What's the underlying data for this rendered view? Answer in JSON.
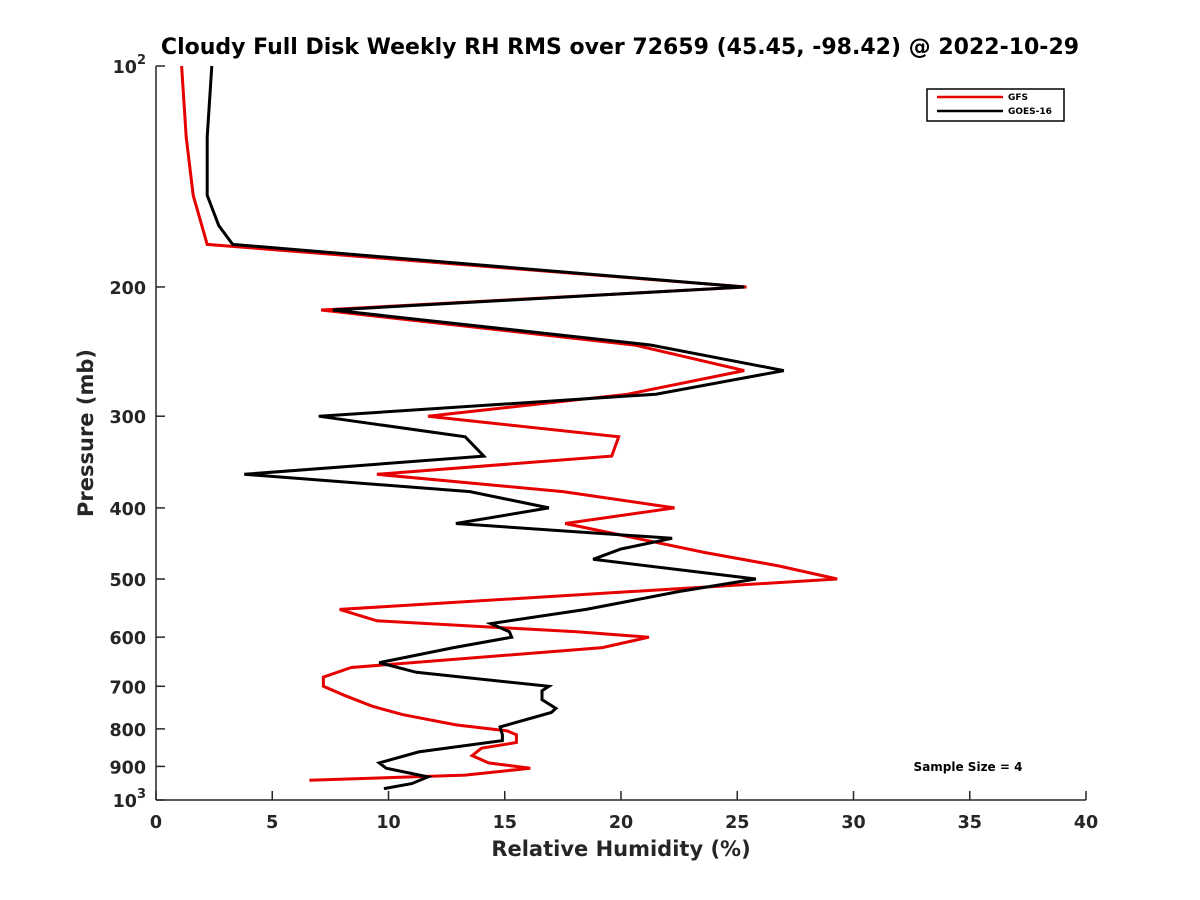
{
  "chart_data": {
    "type": "line",
    "title": "Cloudy Full Disk Weekly RH RMS over 72659 (45.45, -98.42) @ 2022-10-29",
    "xlabel": "Relative Humidity (%)",
    "ylabel": "Pressure (mb)",
    "xlim": [
      0,
      40
    ],
    "ylim": [
      100,
      1000
    ],
    "y_scale": "log",
    "y_reversed": true,
    "x_ticks": [
      "0",
      "5",
      "10",
      "15",
      "20",
      "25",
      "30",
      "35",
      "40"
    ],
    "y_ticks": [
      {
        "value": 100,
        "base": "10",
        "exp": "2"
      },
      {
        "value": 200,
        "label": "200"
      },
      {
        "value": 300,
        "label": "300"
      },
      {
        "value": 400,
        "label": "400"
      },
      {
        "value": 500,
        "label": "500"
      },
      {
        "value": 600,
        "label": "600"
      },
      {
        "value": 700,
        "label": "700"
      },
      {
        "value": 800,
        "label": "800"
      },
      {
        "value": 900,
        "label": "900"
      },
      {
        "value": 1000,
        "base": "10",
        "exp": "3"
      }
    ],
    "legend_position": "top-right",
    "annotation": "Sample Size = 4",
    "series": [
      {
        "name": "GFS",
        "color": "#e60000",
        "points": [
          [
            1.1,
            100
          ],
          [
            1.3,
            125
          ],
          [
            1.6,
            150
          ],
          [
            2.2,
            175
          ],
          [
            25.4,
            200
          ],
          [
            7.1,
            215
          ],
          [
            20.6,
            240
          ],
          [
            25.3,
            260
          ],
          [
            20.3,
            280
          ],
          [
            11.7,
            300
          ],
          [
            19.9,
            320
          ],
          [
            19.6,
            340
          ],
          [
            9.5,
            360
          ],
          [
            17.5,
            380
          ],
          [
            22.3,
            400
          ],
          [
            17.6,
            420
          ],
          [
            23.6,
            460
          ],
          [
            26.8,
            480
          ],
          [
            29.3,
            500
          ],
          [
            7.9,
            550
          ],
          [
            9.5,
            570
          ],
          [
            18.1,
            590
          ],
          [
            21.2,
            600
          ],
          [
            19.2,
            620
          ],
          [
            8.4,
            660
          ],
          [
            7.2,
            680
          ],
          [
            7.2,
            700
          ],
          [
            8.1,
            720
          ],
          [
            9.3,
            745
          ],
          [
            10.6,
            765
          ],
          [
            12.9,
            790
          ],
          [
            15.1,
            805
          ],
          [
            15.5,
            815
          ],
          [
            15.5,
            835
          ],
          [
            14.0,
            850
          ],
          [
            13.6,
            870
          ],
          [
            14.3,
            890
          ],
          [
            16.1,
            905
          ],
          [
            13.3,
            925
          ],
          [
            6.6,
            940
          ]
        ]
      },
      {
        "name": "GOES-16",
        "color": "#000000",
        "points": [
          [
            2.4,
            100
          ],
          [
            2.2,
            125
          ],
          [
            2.2,
            150
          ],
          [
            2.7,
            165
          ],
          [
            3.3,
            175
          ],
          [
            25.3,
            200
          ],
          [
            7.6,
            215
          ],
          [
            21.3,
            240
          ],
          [
            27.0,
            260
          ],
          [
            21.5,
            280
          ],
          [
            7.0,
            300
          ],
          [
            13.3,
            320
          ],
          [
            14.1,
            340
          ],
          [
            3.8,
            360
          ],
          [
            13.5,
            380
          ],
          [
            16.9,
            400
          ],
          [
            12.9,
            420
          ],
          [
            22.2,
            440
          ],
          [
            20.0,
            455
          ],
          [
            18.8,
            470
          ],
          [
            25.8,
            500
          ],
          [
            22.5,
            520
          ],
          [
            18.5,
            550
          ],
          [
            14.4,
            575
          ],
          [
            15.2,
            590
          ],
          [
            15.3,
            600
          ],
          [
            12.8,
            620
          ],
          [
            9.6,
            650
          ],
          [
            11.2,
            670
          ],
          [
            16.9,
            700
          ],
          [
            16.6,
            710
          ],
          [
            16.6,
            730
          ],
          [
            17.2,
            750
          ],
          [
            17.0,
            760
          ],
          [
            14.8,
            795
          ],
          [
            14.9,
            815
          ],
          [
            14.9,
            830
          ],
          [
            11.3,
            860
          ],
          [
            9.6,
            890
          ],
          [
            9.9,
            905
          ],
          [
            11.7,
            930
          ],
          [
            11.0,
            950
          ],
          [
            9.8,
            965
          ]
        ]
      }
    ]
  }
}
